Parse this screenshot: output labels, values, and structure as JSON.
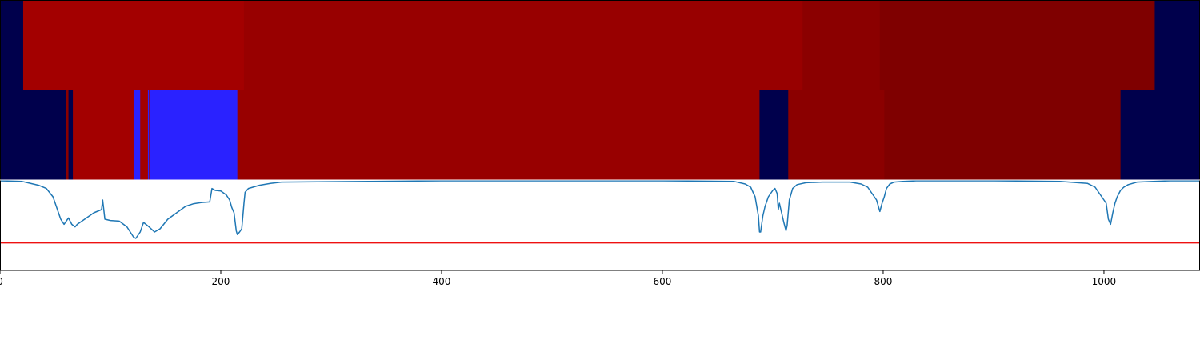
{
  "chart_data": {
    "type": "heatmap",
    "title": "",
    "xlabel": "",
    "ylabel": "",
    "xlim": [
      0,
      1087
    ],
    "xticks": [
      0,
      200,
      400,
      600,
      800,
      1000
    ],
    "tick_labels": [
      "0",
      "200",
      "400",
      "600",
      "800",
      "1000"
    ],
    "colors": {
      "background_band": "#00004c",
      "state_a": "#a30000",
      "state_b": "#980000",
      "state_c": "#8b0000",
      "state_d": "#7f0000",
      "state_blue": "#2a22ff",
      "signal_line": "#1f77b4",
      "threshold_line": "#ee1111"
    },
    "track_1": [
      {
        "start": 0,
        "end": 21,
        "state": "background_band"
      },
      {
        "start": 21,
        "end": 221,
        "state": "state_a"
      },
      {
        "start": 221,
        "end": 727,
        "state": "state_b"
      },
      {
        "start": 727,
        "end": 797,
        "state": "state_c"
      },
      {
        "start": 797,
        "end": 1046,
        "state": "state_d"
      },
      {
        "start": 1046,
        "end": 1087,
        "state": "background_band"
      }
    ],
    "track_2": [
      {
        "start": 0,
        "end": 60,
        "state": "background_band"
      },
      {
        "start": 60,
        "end": 62,
        "state": "state_c"
      },
      {
        "start": 62,
        "end": 66,
        "state": "background_band"
      },
      {
        "start": 66,
        "end": 121,
        "state": "state_a"
      },
      {
        "start": 121,
        "end": 127,
        "state": "state_blue"
      },
      {
        "start": 127,
        "end": 134,
        "state": "state_a"
      },
      {
        "start": 134,
        "end": 135,
        "state": "state_blue"
      },
      {
        "start": 135,
        "end": 135.5,
        "state": "state_a"
      },
      {
        "start": 135.5,
        "end": 215,
        "state": "state_blue"
      },
      {
        "start": 215,
        "end": 688,
        "state": "state_b"
      },
      {
        "start": 688,
        "end": 714,
        "state": "background_band"
      },
      {
        "start": 714,
        "end": 801,
        "state": "state_c"
      },
      {
        "start": 801,
        "end": 1015,
        "state": "state_d"
      },
      {
        "start": 1015,
        "end": 1087,
        "state": "background_band"
      }
    ],
    "signal_ylim": [
      -1.4,
      0.0
    ],
    "threshold": -0.97,
    "signal": {
      "x": [
        0,
        20,
        25,
        35,
        42,
        48,
        52,
        55,
        58,
        62,
        65,
        68,
        70,
        75,
        85,
        92,
        93,
        95,
        100,
        108,
        115,
        118,
        121,
        123,
        125,
        127,
        130,
        135,
        140,
        145,
        152,
        160,
        168,
        175,
        182,
        190,
        192,
        195,
        200,
        205,
        208,
        210,
        212,
        214,
        215,
        217,
        219,
        221,
        222,
        225,
        235,
        245,
        255,
        400,
        600,
        665,
        675,
        680,
        684,
        687,
        688,
        689,
        691,
        693,
        696,
        700,
        702,
        704,
        705,
        706,
        708,
        710,
        712,
        713,
        714,
        715,
        718,
        722,
        730,
        745,
        770,
        780,
        786,
        790,
        794,
        797,
        799,
        801,
        803,
        806,
        810,
        818,
        830,
        900,
        960,
        985,
        992,
        998,
        1002,
        1004,
        1006,
        1008,
        1010,
        1012,
        1015,
        1018,
        1022,
        1030,
        1045,
        1060,
        1087
      ],
      "y": [
        0.0,
        -0.01,
        -0.03,
        -0.07,
        -0.12,
        -0.25,
        -0.45,
        -0.6,
        -0.68,
        -0.58,
        -0.68,
        -0.72,
        -0.68,
        -0.62,
        -0.5,
        -0.45,
        -0.3,
        -0.6,
        -0.62,
        -0.63,
        -0.72,
        -0.8,
        -0.88,
        -0.9,
        -0.85,
        -0.8,
        -0.65,
        -0.72,
        -0.8,
        -0.75,
        -0.6,
        -0.5,
        -0.4,
        -0.36,
        -0.34,
        -0.33,
        -0.12,
        -0.15,
        -0.16,
        -0.22,
        -0.3,
        -0.42,
        -0.5,
        -0.78,
        -0.84,
        -0.8,
        -0.75,
        -0.35,
        -0.18,
        -0.12,
        -0.07,
        -0.04,
        -0.02,
        0.0,
        0.0,
        -0.01,
        -0.05,
        -0.1,
        -0.25,
        -0.55,
        -0.8,
        -0.8,
        -0.55,
        -0.4,
        -0.25,
        -0.15,
        -0.12,
        -0.2,
        -0.45,
        -0.35,
        -0.5,
        -0.65,
        -0.78,
        -0.7,
        -0.5,
        -0.3,
        -0.12,
        -0.06,
        -0.03,
        -0.02,
        -0.02,
        -0.05,
        -0.1,
        -0.2,
        -0.3,
        -0.48,
        -0.35,
        -0.25,
        -0.12,
        -0.05,
        -0.02,
        -0.01,
        0.0,
        0.0,
        -0.01,
        -0.04,
        -0.1,
        -0.25,
        -0.35,
        -0.6,
        -0.68,
        -0.5,
        -0.35,
        -0.25,
        -0.15,
        -0.1,
        -0.06,
        -0.02,
        -0.01,
        0.0,
        0.0
      ]
    }
  }
}
